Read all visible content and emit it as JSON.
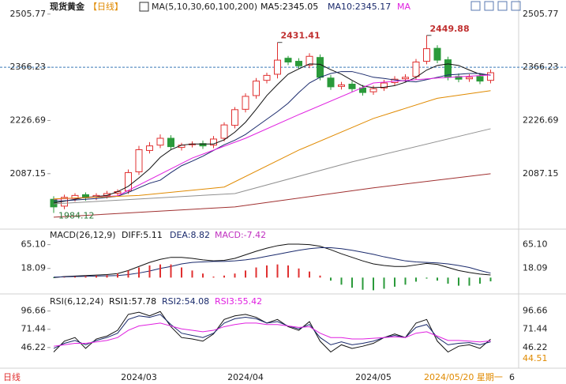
{
  "toolbar": {
    "title": "现货黄金",
    "period": "【日线】"
  },
  "chart_data": [
    {
      "type": "candlestick",
      "indicator": "MA(5,10,30,60,100,200)",
      "categories": [
        null,
        null,
        null,
        null,
        null,
        null,
        null,
        null,
        "2024/03",
        null,
        null,
        null,
        null,
        null,
        null,
        null,
        null,
        null,
        "2024/04",
        null,
        null,
        null,
        null,
        null,
        null,
        null,
        null,
        null,
        null,
        null,
        "2024/05",
        null,
        null,
        null,
        null,
        null,
        null,
        null,
        null,
        null,
        null,
        null
      ],
      "open": [
        2020,
        2002,
        2022,
        2032,
        2026,
        2030,
        2036,
        2042,
        2092,
        2148,
        2162,
        2180,
        2156,
        2164,
        2166,
        2162,
        2180,
        2214,
        2256,
        2292,
        2332,
        2348,
        2390,
        2382,
        2372,
        2392,
        2338,
        2316,
        2322,
        2312,
        2302,
        2312,
        2326,
        2336,
        2342,
        2382,
        2416,
        2386,
        2342,
        2336,
        2342,
        2332
      ],
      "high": [
        2028,
        2032,
        2036,
        2038,
        2036,
        2042,
        2046,
        2098,
        2160,
        2170,
        2190,
        2188,
        2168,
        2172,
        2174,
        2186,
        2222,
        2262,
        2298,
        2338,
        2352,
        2431.41,
        2396,
        2390,
        2403,
        2400,
        2346,
        2328,
        2330,
        2320,
        2318,
        2333,
        2343,
        2348,
        2388,
        2449.88,
        2424,
        2394,
        2350,
        2348,
        2350,
        2360
      ],
      "low": [
        1984.12,
        1994,
        2014,
        2016,
        2018,
        2022,
        2028,
        2034,
        2084,
        2140,
        2154,
        2150,
        2148,
        2156,
        2152,
        2154,
        2172,
        2206,
        2248,
        2284,
        2324,
        2337,
        2372,
        2362,
        2364,
        2332,
        2307,
        2308,
        2302,
        2292,
        2294,
        2304,
        2318,
        2328,
        2334,
        2374,
        2377,
        2332,
        2327,
        2328,
        2322,
        2324
      ],
      "close": [
        2000,
        2025,
        2030,
        2024,
        2030,
        2035,
        2040,
        2090,
        2150,
        2160,
        2180,
        2158,
        2162,
        2165,
        2160,
        2178,
        2215,
        2255,
        2290,
        2330,
        2345,
        2385,
        2380,
        2370,
        2395,
        2340,
        2315,
        2320,
        2310,
        2300,
        2310,
        2325,
        2335,
        2340,
        2380,
        2415,
        2385,
        2340,
        2335,
        2340,
        2330,
        2352
      ],
      "up_color": "#e03030",
      "down_color": "#2a9a3a",
      "last_price": 2366.23,
      "ylim": [
        1952,
        2522
      ],
      "yticks": [
        2087.15,
        2226.69,
        2366.23,
        2505.77
      ],
      "series": [
        {
          "name": "MA5:2345.05",
          "color": "#111111",
          "values": [
            2010,
            2015,
            2020,
            2025,
            2027,
            2030,
            2040,
            2054,
            2076,
            2100,
            2130,
            2150,
            2162,
            2165,
            2165,
            2165,
            2176,
            2196,
            2222,
            2256,
            2292,
            2321,
            2348,
            2362,
            2375,
            2374,
            2360,
            2348,
            2332,
            2317,
            2313,
            2314,
            2318,
            2327,
            2340,
            2359,
            2371,
            2375,
            2371,
            2359,
            2348,
            2346
          ]
        },
        {
          "name": "MA10:2345.17",
          "color": "#1a2a6c",
          "values": [
            2015,
            2016,
            2018,
            2020,
            2022,
            2025,
            2028,
            2038,
            2050,
            2062,
            2070,
            2090,
            2108,
            2120,
            2133,
            2148,
            2163,
            2175,
            2190,
            2210,
            2230,
            2250,
            2272,
            2300,
            2325,
            2340,
            2350,
            2355,
            2355,
            2348,
            2340,
            2337,
            2333,
            2330,
            2328,
            2334,
            2340,
            2346,
            2348,
            2350,
            2350,
            2345
          ]
        },
        {
          "name": "MA",
          "color": "#e020e0",
          "x": [
            0,
            6,
            13,
            18,
            23,
            30,
            36,
            41
          ],
          "values": [
            2020,
            2029,
            2128,
            2180,
            2242,
            2325,
            2338,
            2346
          ]
        },
        {
          "color": "#e08a00",
          "x": [
            0,
            8,
            16,
            23,
            30,
            36,
            41
          ],
          "values": [
            2021,
            2030,
            2052,
            2149,
            2232,
            2285,
            2305
          ]
        },
        {
          "color": "#909090",
          "x": [
            0,
            17,
            28,
            41
          ],
          "values": [
            2008,
            2035,
            2118,
            2205
          ]
        },
        {
          "color": "#a03030",
          "x": [
            0,
            17,
            30,
            41
          ],
          "values": [
            1973,
            2000,
            2050,
            2087
          ]
        }
      ]
    },
    {
      "type": "macd",
      "title": "MACD(26,12,9)",
      "ylim": [
        -26,
        91
      ],
      "yticks": [
        {
          "value": 18.09,
          "label": "18.09"
        },
        {
          "value": 65.1,
          "label": "65.10"
        }
      ],
      "up_color": "#e03030",
      "down_color": "#2a9a3a",
      "series": [
        {
          "name": "DIFF:5.11",
          "color": "#111111",
          "values": [
            0,
            2,
            3,
            4,
            5,
            6,
            8,
            14,
            22,
            30,
            36,
            40,
            40,
            38,
            35,
            33,
            34,
            38,
            45,
            52,
            58,
            63,
            66,
            66,
            65,
            62,
            55,
            47,
            40,
            33,
            27,
            24,
            22,
            22,
            25,
            28,
            26,
            20,
            14,
            10,
            7,
            5.11
          ]
        },
        {
          "name": "DEA:8.82",
          "color": "#1a2a6c",
          "values": [
            1,
            1.5,
            2,
            2.5,
            3,
            3.5,
            4,
            6,
            9,
            13,
            18,
            22,
            27,
            30,
            31,
            32,
            32,
            33,
            35,
            38,
            42,
            46,
            50,
            54,
            57,
            59,
            59,
            57,
            54,
            50,
            46,
            41,
            37,
            33,
            31,
            30,
            29,
            27,
            24,
            20,
            14,
            8.82
          ]
        },
        {
          "name": "MACD:-7.42",
          "color": "#c030c0",
          "kind": "bar",
          "values": [
            -1,
            1,
            2,
            3,
            4,
            5,
            8,
            14,
            20,
            24,
            26,
            26,
            20,
            14,
            8,
            2,
            4,
            8,
            14,
            20,
            24,
            26,
            24,
            18,
            12,
            4,
            -6,
            -14,
            -20,
            -24,
            -25,
            -22,
            -18,
            -14,
            -8,
            -2,
            -6,
            -12,
            -16,
            -16,
            -12,
            -7.42
          ]
        }
      ]
    },
    {
      "type": "line",
      "title": "RSI(6,12,24)",
      "ylim": [
        22,
        117
      ],
      "yticks": [
        46.22,
        71.44,
        96.66
      ],
      "side_label": "44.51",
      "series": [
        {
          "name": "RSI1:57.78",
          "color": "#111111",
          "values": [
            40,
            55,
            60,
            45,
            58,
            62,
            70,
            92,
            95,
            90,
            96,
            75,
            60,
            58,
            55,
            65,
            85,
            90,
            92,
            88,
            80,
            85,
            75,
            70,
            82,
            55,
            40,
            50,
            45,
            48,
            52,
            60,
            65,
            60,
            80,
            85,
            55,
            40,
            48,
            50,
            45,
            57.78
          ]
        },
        {
          "name": "RSI2:54.08",
          "color": "#1a2a6c",
          "values": [
            45,
            52,
            56,
            50,
            56,
            60,
            66,
            85,
            90,
            88,
            92,
            78,
            66,
            63,
            60,
            66,
            80,
            86,
            88,
            86,
            80,
            82,
            76,
            72,
            78,
            60,
            50,
            54,
            50,
            52,
            55,
            60,
            63,
            60,
            74,
            78,
            60,
            50,
            52,
            53,
            50,
            54.08
          ]
        },
        {
          "name": "RSI3:55.42",
          "color": "#e020e0",
          "values": [
            48,
            50,
            52,
            52,
            54,
            56,
            60,
            70,
            76,
            78,
            80,
            76,
            72,
            70,
            68,
            70,
            75,
            78,
            80,
            80,
            78,
            78,
            76,
            74,
            75,
            66,
            60,
            60,
            58,
            58,
            59,
            60,
            61,
            60,
            66,
            68,
            62,
            56,
            56,
            55,
            54,
            55.42
          ]
        }
      ]
    }
  ],
  "footer": {
    "period": "日线",
    "date": "2024/05/20 星期一",
    "page": "6"
  }
}
